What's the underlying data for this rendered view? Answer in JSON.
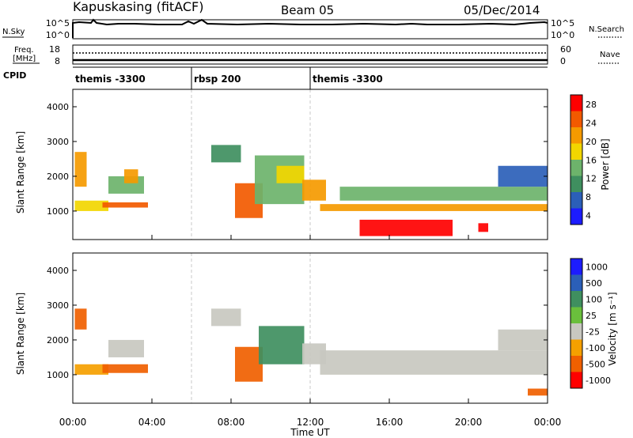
{
  "header": {
    "title": "Kapuskasing (fitACF)",
    "beam": "Beam 05",
    "date": "05/Dec/2014"
  },
  "colors": {
    "power_scale": [
      "#1c1cff",
      "#2b5fb8",
      "#3f8f5f",
      "#6db36b",
      "#f2d600",
      "#f59a00",
      "#f25a00",
      "#ff0000"
    ],
    "velocity_scale": [
      "#1c1cff",
      "#2b5fb8",
      "#3f8f5f",
      "#6abf3c",
      "#c8c8c0",
      "#f5a000",
      "#f06000",
      "#ff0000"
    ],
    "ground_scatter": "#c8c8c0"
  },
  "panels": {
    "nsky": {
      "left_label": "N.Sky",
      "right_label": "N.Search",
      "left_ticks": [
        "10^5",
        "10^0"
      ],
      "right_ticks": [
        "10^5",
        "10^0"
      ]
    },
    "freq": {
      "left_label_1": "Freq.",
      "left_label_2": "[MHz]",
      "right_label": "Nave",
      "left_ticks": [
        "18",
        "8"
      ],
      "right_ticks": [
        "60",
        "0"
      ]
    },
    "cpid": {
      "label": "CPID",
      "segments": [
        {
          "name": "themis -3300",
          "start_hour": 0,
          "end_hour": 6
        },
        {
          "name": "rbsp 200",
          "start_hour": 6,
          "end_hour": 12
        },
        {
          "name": "themis -3300",
          "start_hour": 12,
          "end_hour": 24
        }
      ]
    }
  },
  "chart_data": [
    {
      "type": "heatmap",
      "title": "",
      "ylabel": "Slant Range [km]",
      "xlabel": "",
      "ylim": [
        180,
        4500
      ],
      "yticks": [
        "4000",
        "3000",
        "2000",
        "1000"
      ],
      "colorbar_label": "Power [dB]",
      "colorbar_ticks": [
        "28",
        "24",
        "20",
        "16",
        "12",
        "8",
        "4"
      ],
      "colorbar_range": [
        0,
        30
      ],
      "regions": [
        {
          "t0": 0.1,
          "t1": 1.8,
          "r0": 1000,
          "r1": 1300,
          "value": 18
        },
        {
          "t0": 0.1,
          "t1": 0.7,
          "r0": 1700,
          "r1": 2700,
          "value": 22
        },
        {
          "t0": 1.5,
          "t1": 3.8,
          "r0": 1100,
          "r1": 1250,
          "value": 24
        },
        {
          "t0": 1.8,
          "t1": 3.6,
          "r0": 1500,
          "r1": 2000,
          "value": 14
        },
        {
          "t0": 2.6,
          "t1": 3.3,
          "r0": 1800,
          "r1": 2200,
          "value": 20
        },
        {
          "t0": 7.0,
          "t1": 8.5,
          "r0": 2400,
          "r1": 2900,
          "value": 8
        },
        {
          "t0": 8.2,
          "t1": 9.6,
          "r0": 800,
          "r1": 1800,
          "value": 24
        },
        {
          "t0": 9.2,
          "t1": 11.7,
          "r0": 1200,
          "r1": 2600,
          "value": 12
        },
        {
          "t0": 10.3,
          "t1": 11.7,
          "r0": 1800,
          "r1": 2300,
          "value": 16
        },
        {
          "t0": 11.6,
          "t1": 12.8,
          "r0": 1300,
          "r1": 1900,
          "value": 22
        },
        {
          "t0": 12.5,
          "t1": 24.0,
          "r0": 1000,
          "r1": 1200,
          "value": 20
        },
        {
          "t0": 13.5,
          "t1": 24.0,
          "r0": 1300,
          "r1": 1700,
          "value": 12
        },
        {
          "t0": 14.5,
          "t1": 19.2,
          "r0": 280,
          "r1": 750,
          "value": 28
        },
        {
          "t0": 20.5,
          "t1": 21.0,
          "r0": 400,
          "r1": 650,
          "value": 28
        },
        {
          "t0": 21.5,
          "t1": 24.0,
          "r0": 1700,
          "r1": 2300,
          "value": 6
        }
      ]
    },
    {
      "type": "heatmap",
      "title": "",
      "ylabel": "Slant Range [km]",
      "xlabel": "Time UT",
      "ylim": [
        180,
        4500
      ],
      "yticks": [
        "4000",
        "3000",
        "2000",
        "1000"
      ],
      "xticks": [
        "00:00",
        "04:00",
        "08:00",
        "12:00",
        "16:00",
        "20:00",
        "00:00"
      ],
      "colorbar_label": "Velocity [m s⁻¹]",
      "colorbar_ticks": [
        "1000",
        "500",
        "100",
        "25",
        "-25",
        "-100",
        "-500",
        "-1000"
      ],
      "regions": [
        {
          "t0": 0.1,
          "t1": 1.8,
          "r0": 1000,
          "r1": 1300,
          "value": -25
        },
        {
          "t0": 0.1,
          "t1": 0.7,
          "r0": 2300,
          "r1": 2900,
          "value": -300
        },
        {
          "t0": 1.5,
          "t1": 3.8,
          "r0": 1050,
          "r1": 1300,
          "value": -300
        },
        {
          "t0": 1.8,
          "t1": 3.6,
          "r0": 1500,
          "r1": 2000,
          "value": 0
        },
        {
          "t0": 7.0,
          "t1": 8.5,
          "r0": 2400,
          "r1": 2900,
          "value": 0
        },
        {
          "t0": 8.2,
          "t1": 9.6,
          "r0": 800,
          "r1": 1800,
          "value": -300
        },
        {
          "t0": 9.4,
          "t1": 11.7,
          "r0": 1300,
          "r1": 2400,
          "value": 150
        },
        {
          "t0": 11.6,
          "t1": 12.8,
          "r0": 1300,
          "r1": 1900,
          "value": 0
        },
        {
          "t0": 12.5,
          "t1": 24.0,
          "r0": 1000,
          "r1": 1700,
          "value": 0
        },
        {
          "t0": 21.5,
          "t1": 24.0,
          "r0": 1700,
          "r1": 2300,
          "value": 0
        },
        {
          "t0": 23.0,
          "t1": 24.0,
          "r0": 400,
          "r1": 600,
          "value": -300
        }
      ]
    }
  ]
}
